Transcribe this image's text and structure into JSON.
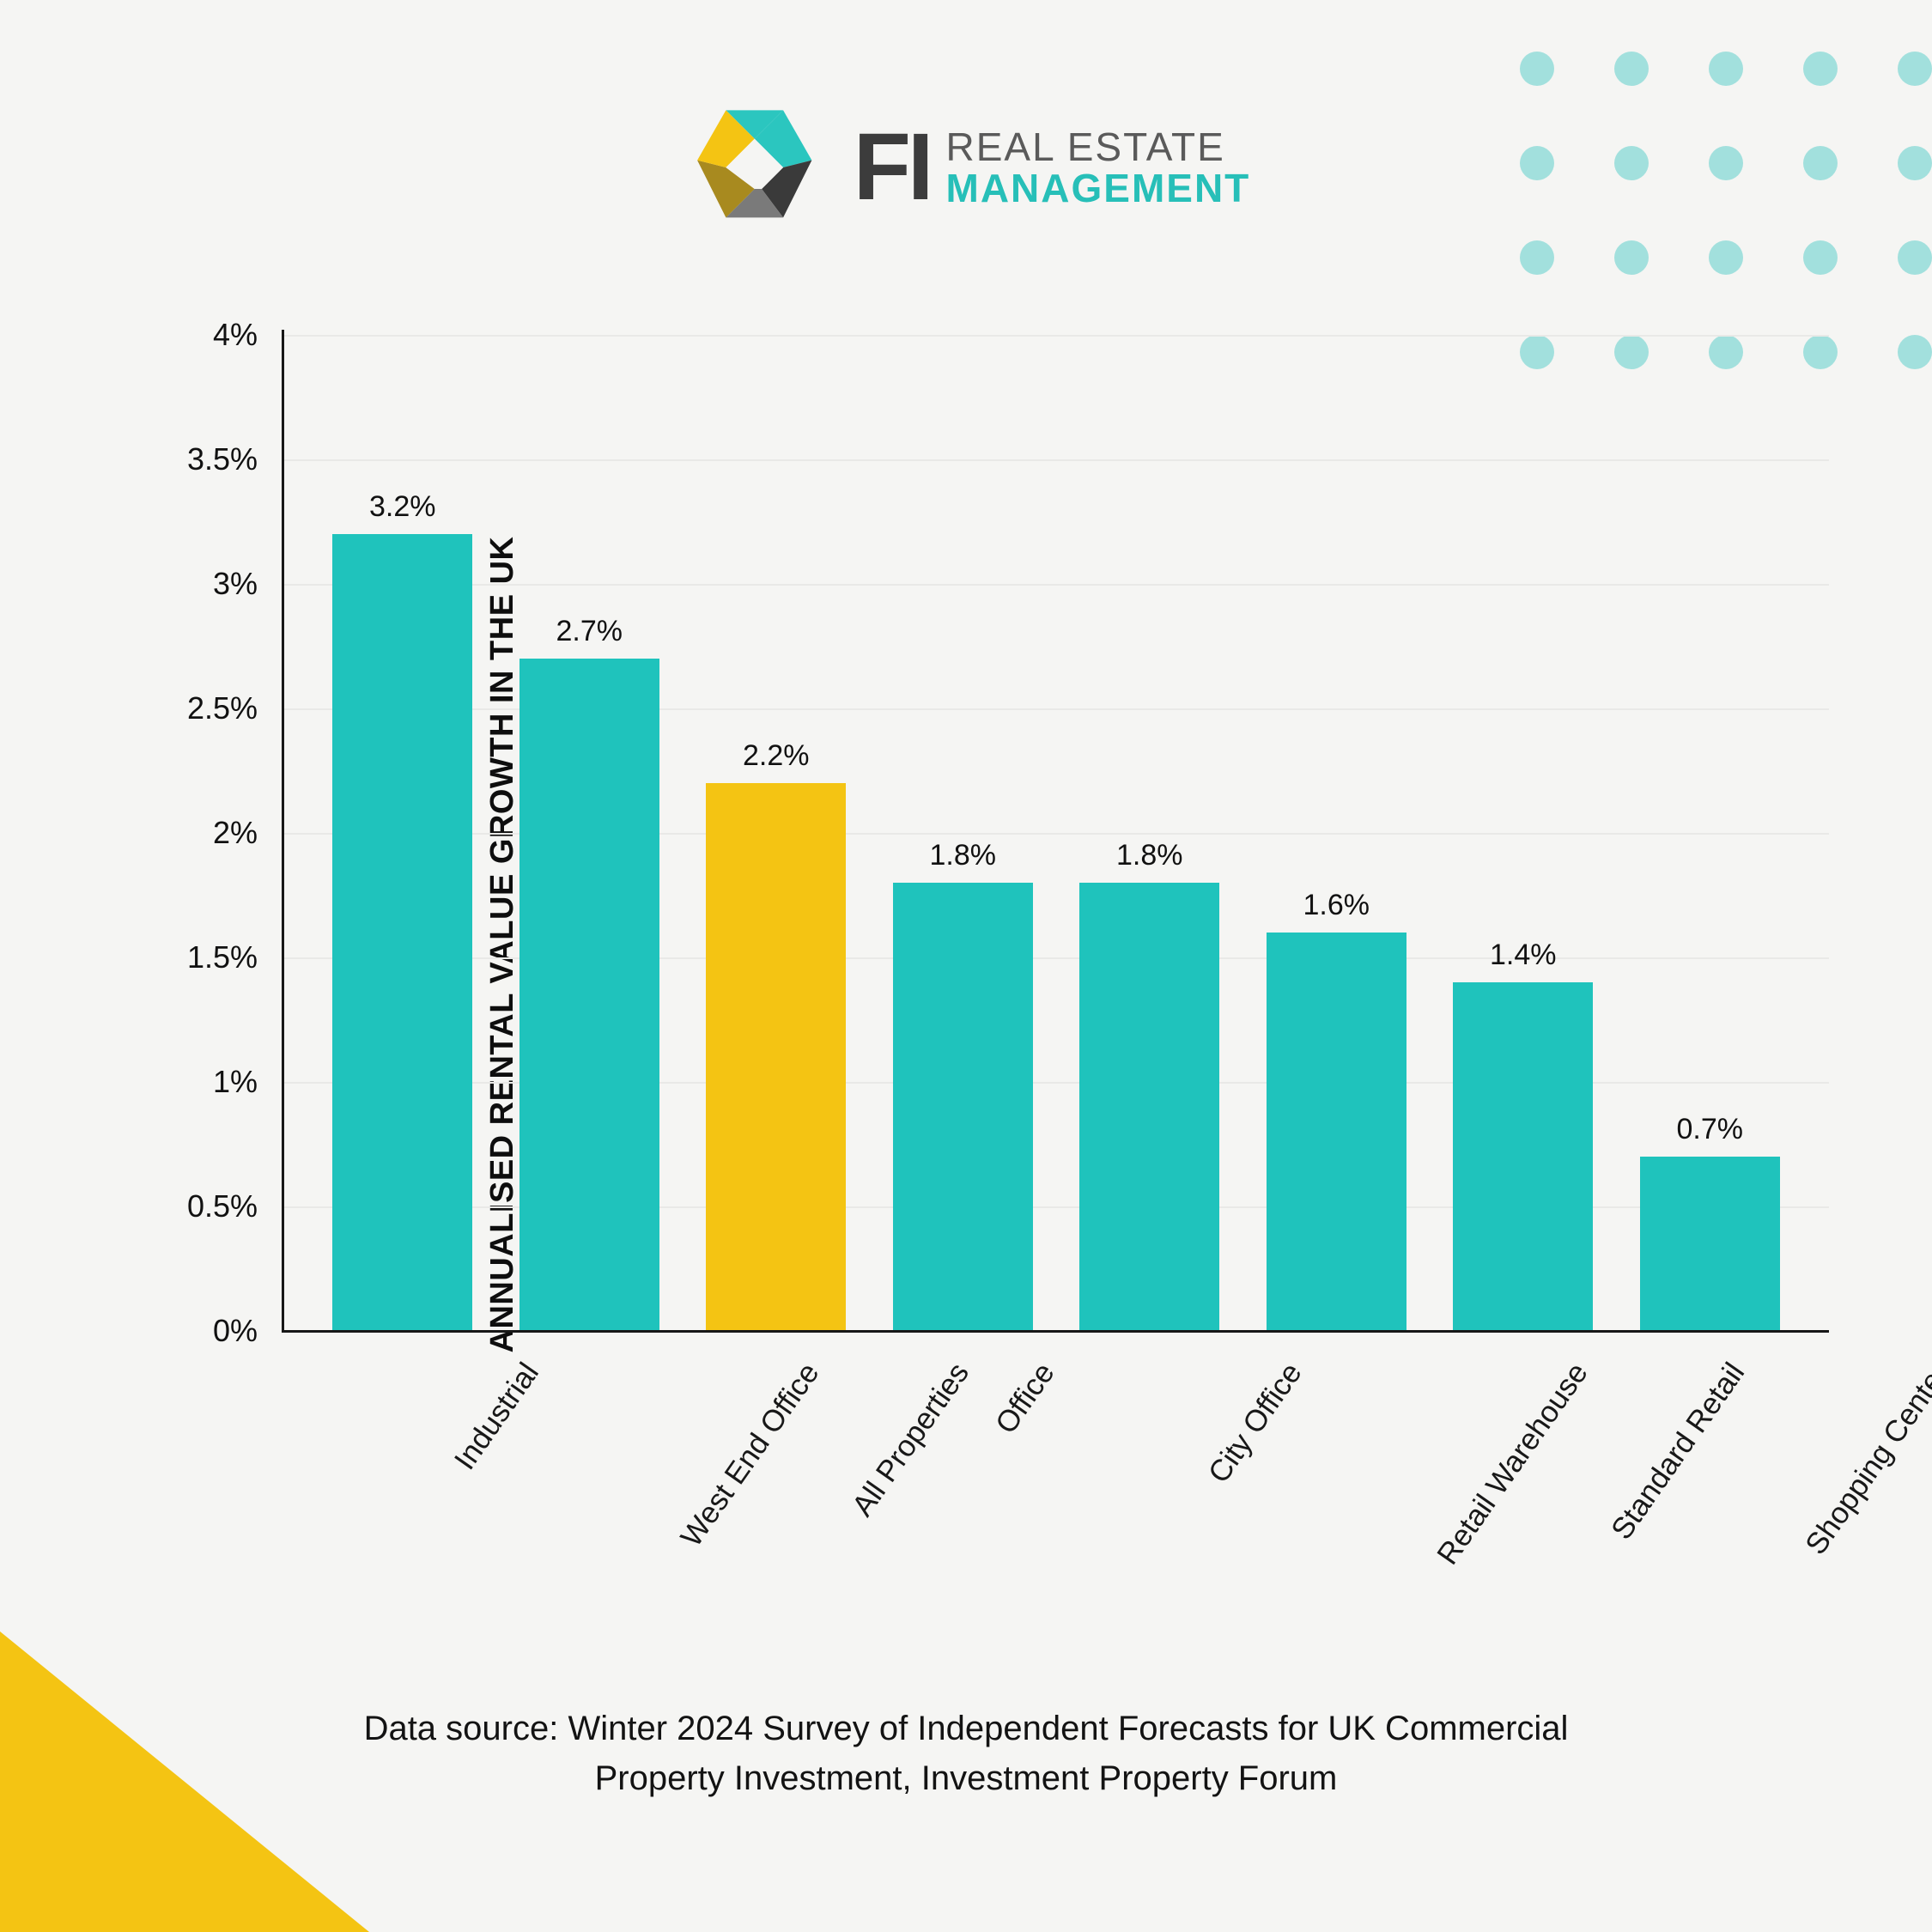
{
  "decor": {
    "dot_color": "#a2e0dd",
    "dot_rows": 4,
    "dot_cols": 5,
    "triangle_color": "#f4c413"
  },
  "logo": {
    "fi": "FI",
    "line1": "REAL ESTATE",
    "line2": "MANAGEMENT",
    "line2_color": "#27bfb8",
    "mark_colors": {
      "top": "#2bc6bf",
      "right_dark": "#3a3a3a",
      "right_light": "#7a7a7a",
      "left_dark": "#a88a1f",
      "left_light": "#f4c413",
      "inner": "#f5f5f3"
    }
  },
  "chart": {
    "type": "bar",
    "y_axis_title": "ANNUALISED RENTAL VALUE GROWTH IN THE UK",
    "ylim": [
      0,
      4
    ],
    "ytick_step": 0.5,
    "yticks": [
      "0%",
      "0.5%",
      "1%",
      "1.5%",
      "2%",
      "2.5%",
      "3%",
      "3.5%",
      "4%"
    ],
    "categories": [
      "Industrial",
      "West End Office",
      "All Properties",
      "Office",
      "City Office",
      "Retail Warehouse",
      "Standard Retail",
      "Shopping Center"
    ],
    "values": [
      3.2,
      2.7,
      2.2,
      1.8,
      1.8,
      1.6,
      1.4,
      0.7
    ],
    "value_labels": [
      "3.2%",
      "2.7%",
      "2.2%",
      "1.8%",
      "1.8%",
      "1.6%",
      "1.4%",
      "0.7%"
    ],
    "bar_colors": [
      "#1fc3bc",
      "#1fc3bc",
      "#f4c413",
      "#1fc3bc",
      "#1fc3bc",
      "#1fc3bc",
      "#1fc3bc",
      "#1fc3bc"
    ],
    "background_color": "#f5f5f3",
    "grid_color": "#e9e9e7",
    "axis_color": "#171717",
    "label_fontsize": 35,
    "value_label_fontsize": 34,
    "ytick_fontsize": 36,
    "ytitle_fontsize": 38,
    "bar_width": 0.75
  },
  "caption": "Data source: Winter 2024 Survey of Independent Forecasts for UK Commercial Property Investment, Investment Property Forum"
}
